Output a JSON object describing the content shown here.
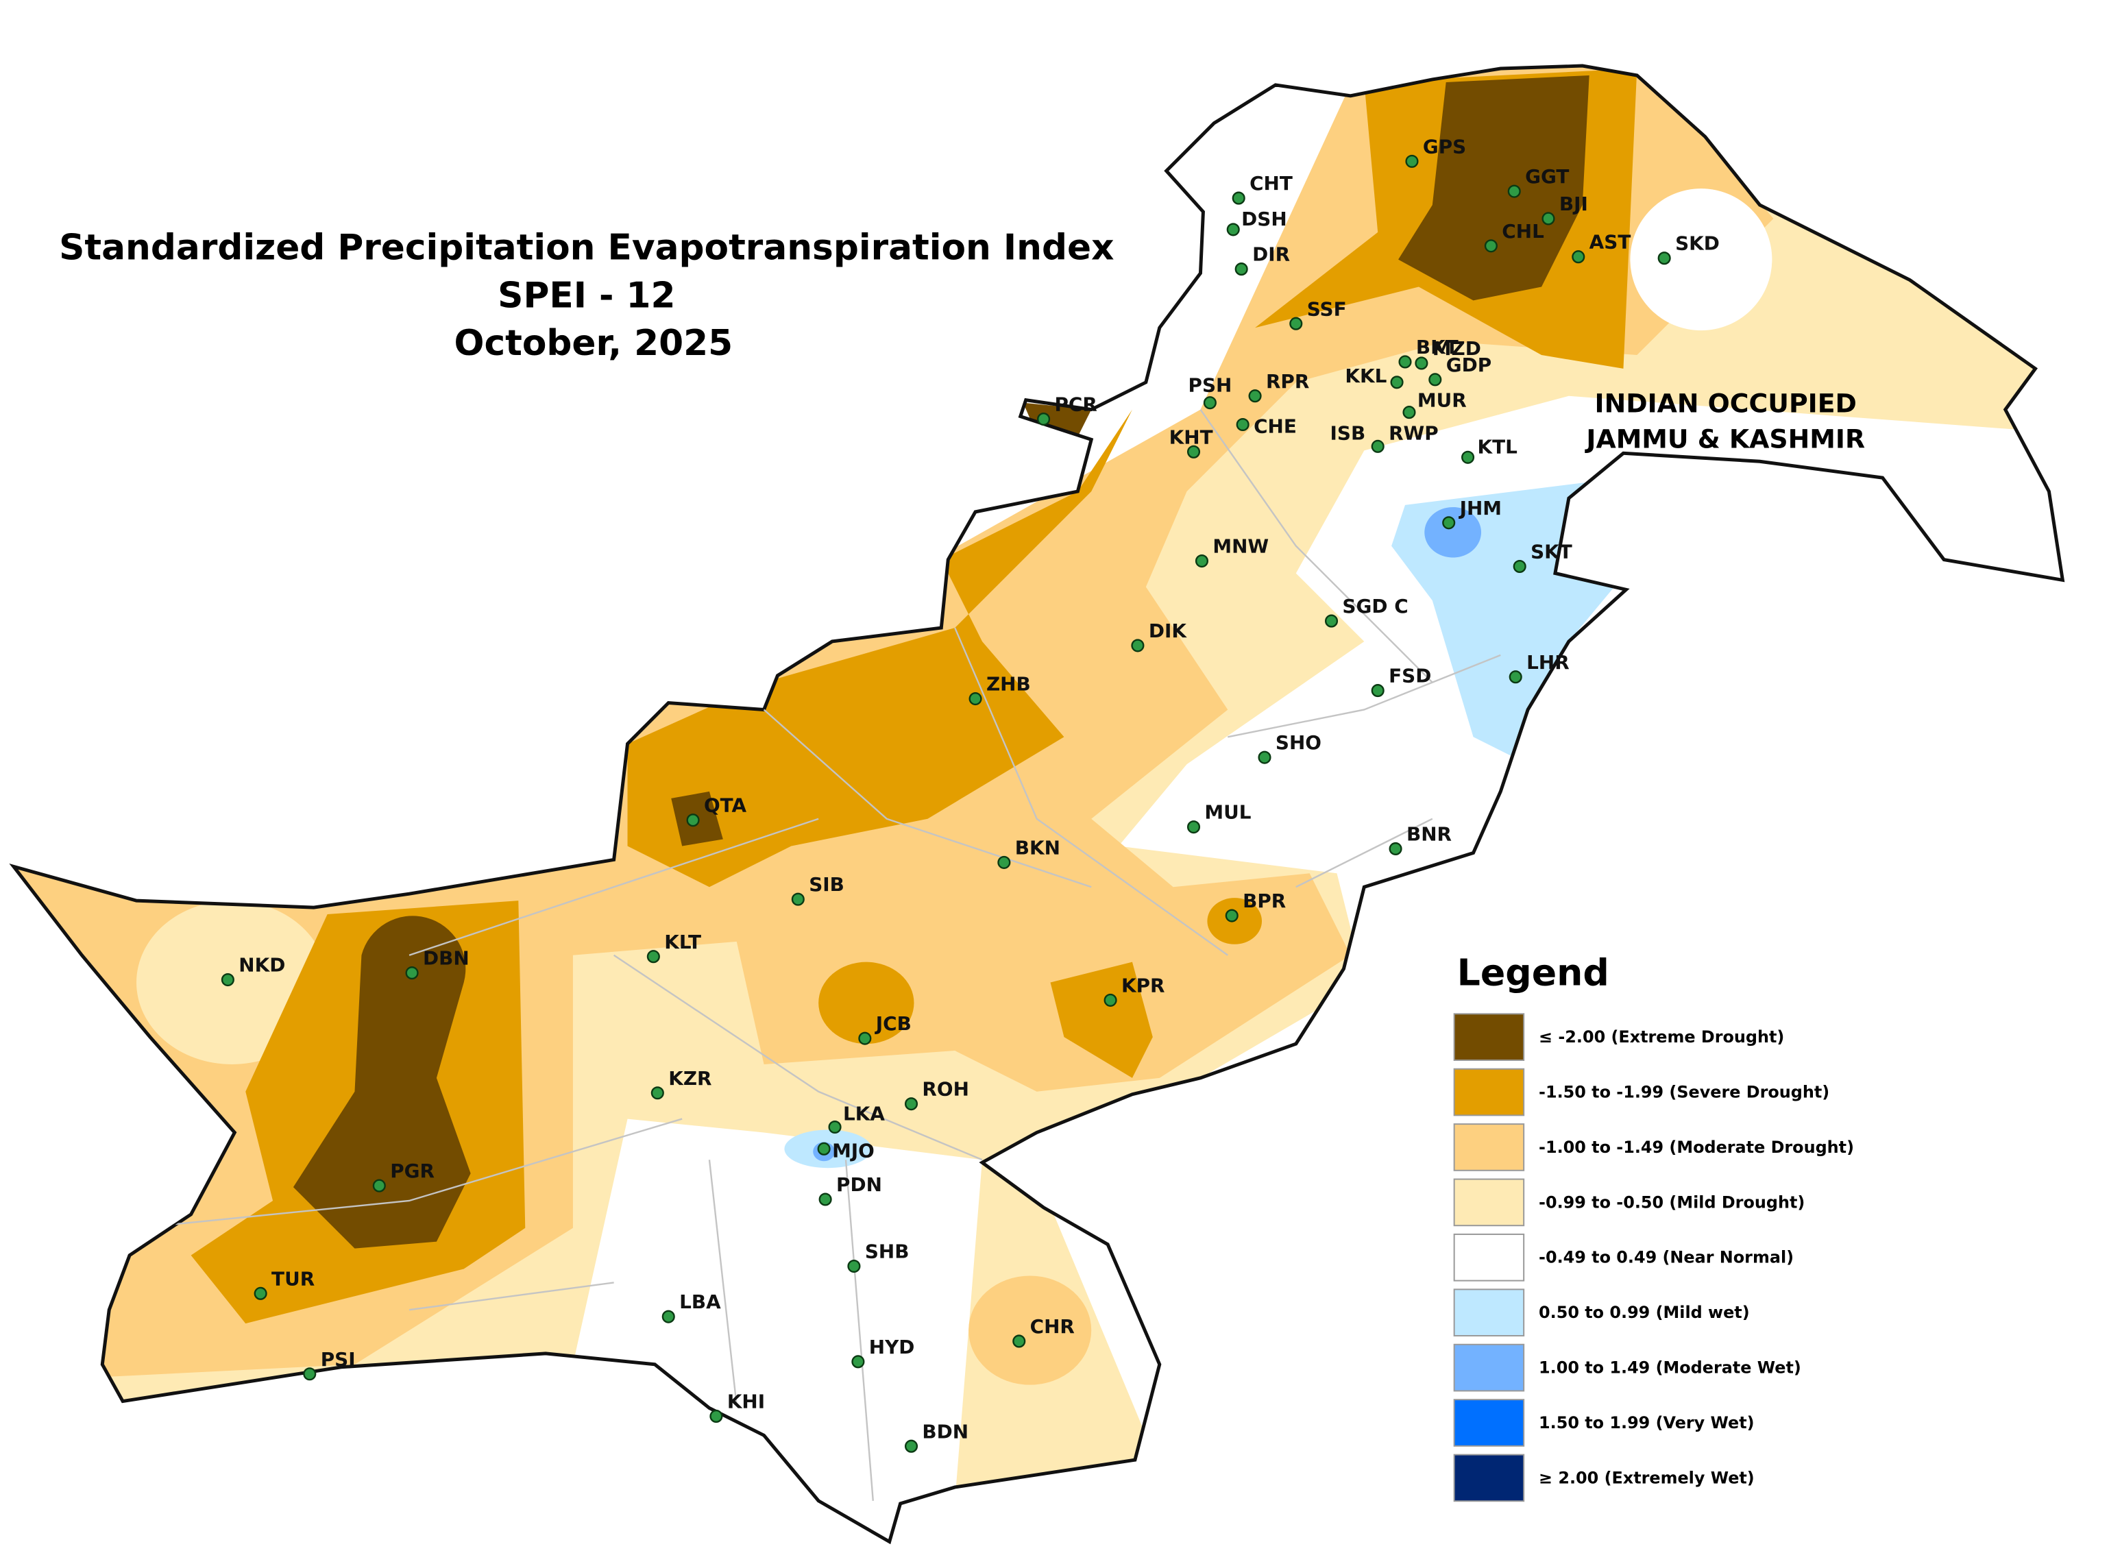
{
  "title": [
    "Standardized Precipitation Evapotranspiration Index",
    "SPEI - 12",
    "October, 2025"
  ],
  "region_label": [
    "INDIAN OCCUPIED",
    "JAMMU & KASHMIR"
  ],
  "stations": [
    "GPS",
    "GGT",
    "CHT",
    "DSH",
    "BJI",
    "CHL",
    "AST",
    "SKD",
    "DIR",
    "SSF",
    "BKT",
    "MZD",
    "KKL",
    "GDP",
    "PSH",
    "RPR",
    "MUR",
    "PCR",
    "CHE",
    "ISB",
    "RWP",
    "KTL",
    "KHT",
    "JHM",
    "SKT",
    "MNW",
    "SGD C",
    "DIK",
    "LHR",
    "FSD",
    "ZHB",
    "SHO",
    "QTA",
    "MUL",
    "BKN",
    "BNR",
    "SIB",
    "BPR",
    "KLT",
    "NKD",
    "DBN",
    "KPR",
    "JCB",
    "KZR",
    "ROH",
    "LKA",
    "MJO",
    "PGR",
    "PDN",
    "SHB",
    "TUR",
    "LBA",
    "CHR",
    "HYD",
    "PSI",
    "KHI",
    "BDN"
  ],
  "legend": {
    "title": "Legend",
    "items": [
      {
        "label": "≤ -2.00  (Extreme Drought)",
        "color": "#734c00"
      },
      {
        "label": "-1.50 to -1.99  (Severe Drought)",
        "color": "#e39e00"
      },
      {
        "label": "-1.00 to -1.49  (Moderate Drought)",
        "color": "#fdd080"
      },
      {
        "label": "-0.99 to -0.50  (Mild Drought)",
        "color": "#feeab4"
      },
      {
        "label": "-0.49 to 0.49  (Near Normal)",
        "color": "#ffffff"
      },
      {
        "label": "0.50 to 0.99  (Mild wet)",
        "color": "#bee8ff"
      },
      {
        "label": "1.00 to 1.49  (Moderate Wet)",
        "color": "#73b2ff"
      },
      {
        "label": "1.50 to 1.99  (Very Wet)",
        "color": "#0070ff"
      },
      {
        "label": "≥ 2.00   (Extremely Wet)",
        "color": "#002673"
      }
    ]
  }
}
